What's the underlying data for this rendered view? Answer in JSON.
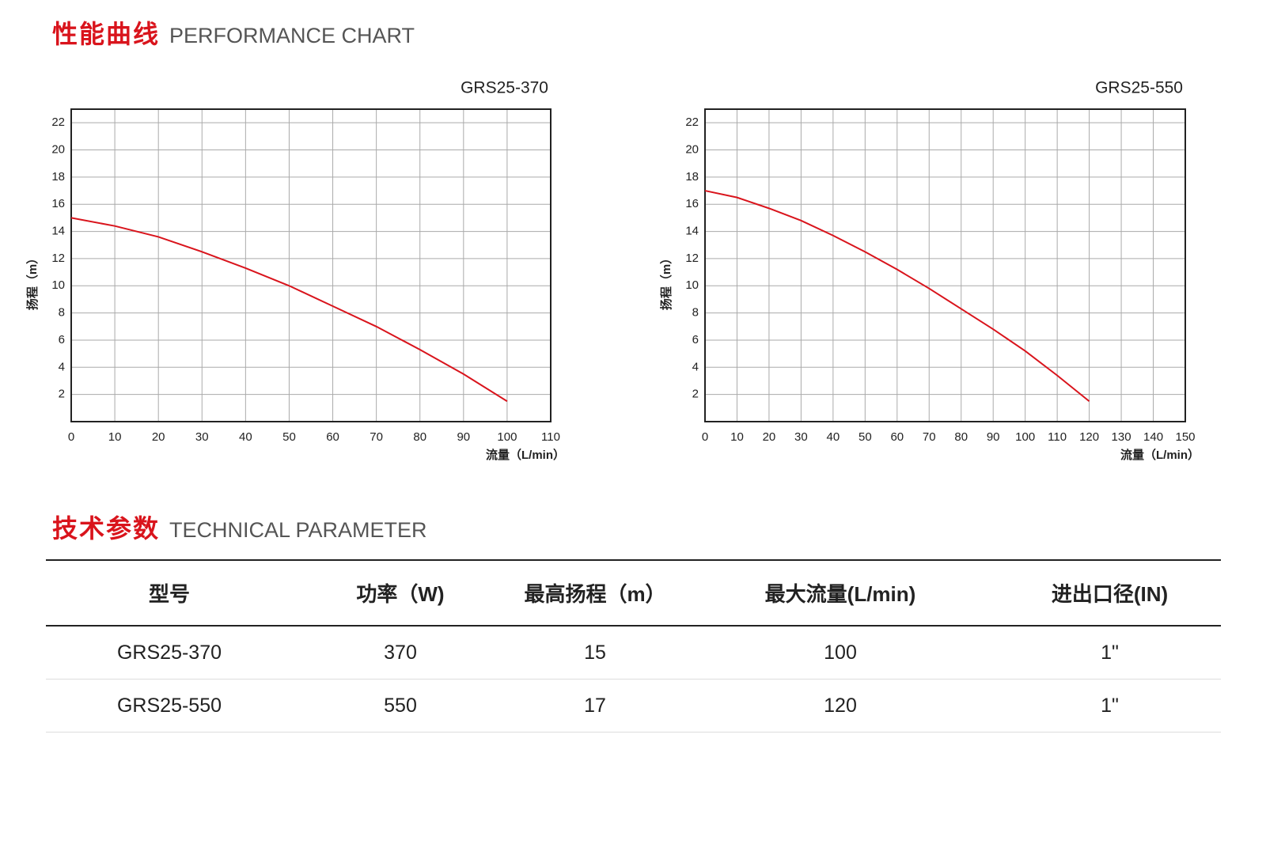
{
  "sections": {
    "performance": {
      "title": "性能曲线",
      "subtitle": "PERFORMANCE CHART"
    },
    "technical": {
      "title": "技术参数",
      "subtitle": "TECHNICAL PARAMETER"
    }
  },
  "chart_data": [
    {
      "type": "line",
      "title": "GRS25-370",
      "x_label": "流量（L/min）",
      "y_label": "扬程（m）",
      "color": "#d9141c",
      "grid": true,
      "x": [
        0,
        10,
        20,
        30,
        40,
        50,
        60,
        70,
        80,
        90,
        100
      ],
      "values": [
        15,
        14.4,
        13.6,
        12.5,
        11.3,
        10,
        8.5,
        7,
        5.3,
        3.5,
        1.5
      ],
      "xlim": [
        0,
        110
      ],
      "xticks": [
        0,
        10,
        20,
        30,
        40,
        50,
        60,
        70,
        80,
        90,
        100,
        110
      ],
      "ylim": [
        0,
        23
      ],
      "yticks": [
        2,
        4,
        6,
        8,
        10,
        12,
        14,
        16,
        18,
        20,
        22
      ]
    },
    {
      "type": "line",
      "title": "GRS25-550",
      "x_label": "流量（L/min）",
      "y_label": "扬程（m）",
      "color": "#d9141c",
      "grid": true,
      "x": [
        0,
        10,
        20,
        30,
        40,
        50,
        60,
        70,
        80,
        90,
        100,
        110,
        120
      ],
      "values": [
        17,
        16.5,
        15.7,
        14.8,
        13.7,
        12.5,
        11.2,
        9.8,
        8.3,
        6.8,
        5.2,
        3.4,
        1.5
      ],
      "xlim": [
        0,
        150
      ],
      "xticks": [
        0,
        10,
        20,
        30,
        40,
        50,
        60,
        70,
        80,
        90,
        100,
        110,
        120,
        130,
        140,
        150
      ],
      "ylim": [
        0,
        23
      ],
      "yticks": [
        2,
        4,
        6,
        8,
        10,
        12,
        14,
        16,
        18,
        20,
        22
      ]
    }
  ],
  "table": {
    "header": [
      "型号",
      "功率（W)",
      "最高扬程（m）",
      "最大流量(L/min)",
      "进出口径(IN)"
    ],
    "rows": [
      [
        "GRS25-370",
        370,
        15,
        100,
        "1\""
      ],
      [
        "GRS25-550",
        550,
        17,
        120,
        "1\""
      ]
    ]
  }
}
